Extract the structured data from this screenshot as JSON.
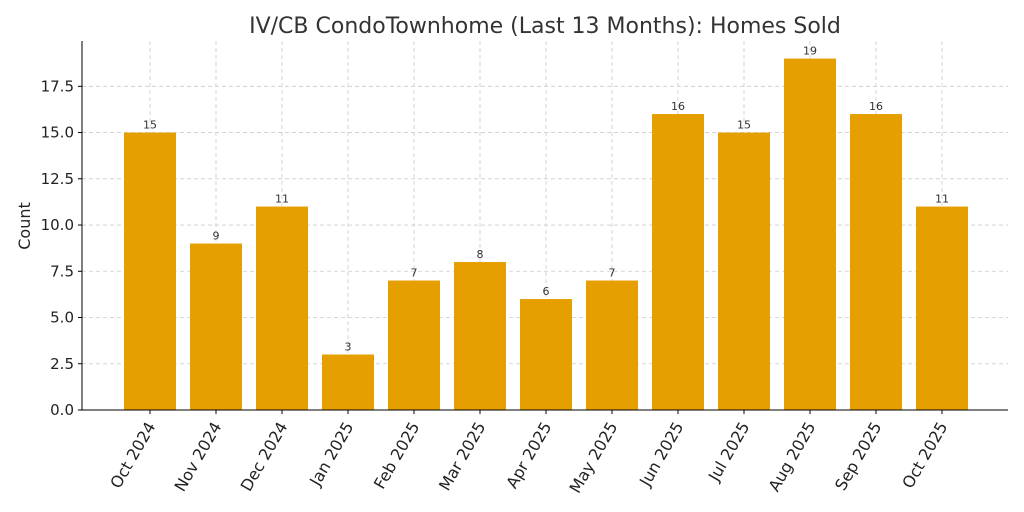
{
  "chart_data": {
    "type": "bar",
    "title": "IV/CB CondoTownhome (Last 13 Months): Homes Sold",
    "xlabel": "",
    "ylabel": "Count",
    "categories": [
      "Oct 2024",
      "Nov 2024",
      "Dec 2024",
      "Jan 2025",
      "Feb 2025",
      "Mar 2025",
      "Apr 2025",
      "May 2025",
      "Jun 2025",
      "Jul 2025",
      "Aug 2025",
      "Sep 2025",
      "Oct 2025"
    ],
    "values": [
      15,
      9,
      11,
      3,
      7,
      8,
      6,
      7,
      16,
      15,
      19,
      16,
      11
    ],
    "data_labels": [
      "15",
      "9",
      "11",
      "3",
      "7",
      "8",
      "6",
      "7",
      "16",
      "15",
      "19",
      "16",
      "11"
    ],
    "ylim": [
      0,
      19.95
    ],
    "yticks": [
      "0.0",
      "2.5",
      "5.0",
      "7.5",
      "10.0",
      "12.5",
      "15.0",
      "17.5"
    ],
    "ytick_values": [
      0,
      2.5,
      5,
      7.5,
      10,
      12.5,
      15,
      17.5
    ],
    "grid": true,
    "bar_color": "#E69F00"
  }
}
